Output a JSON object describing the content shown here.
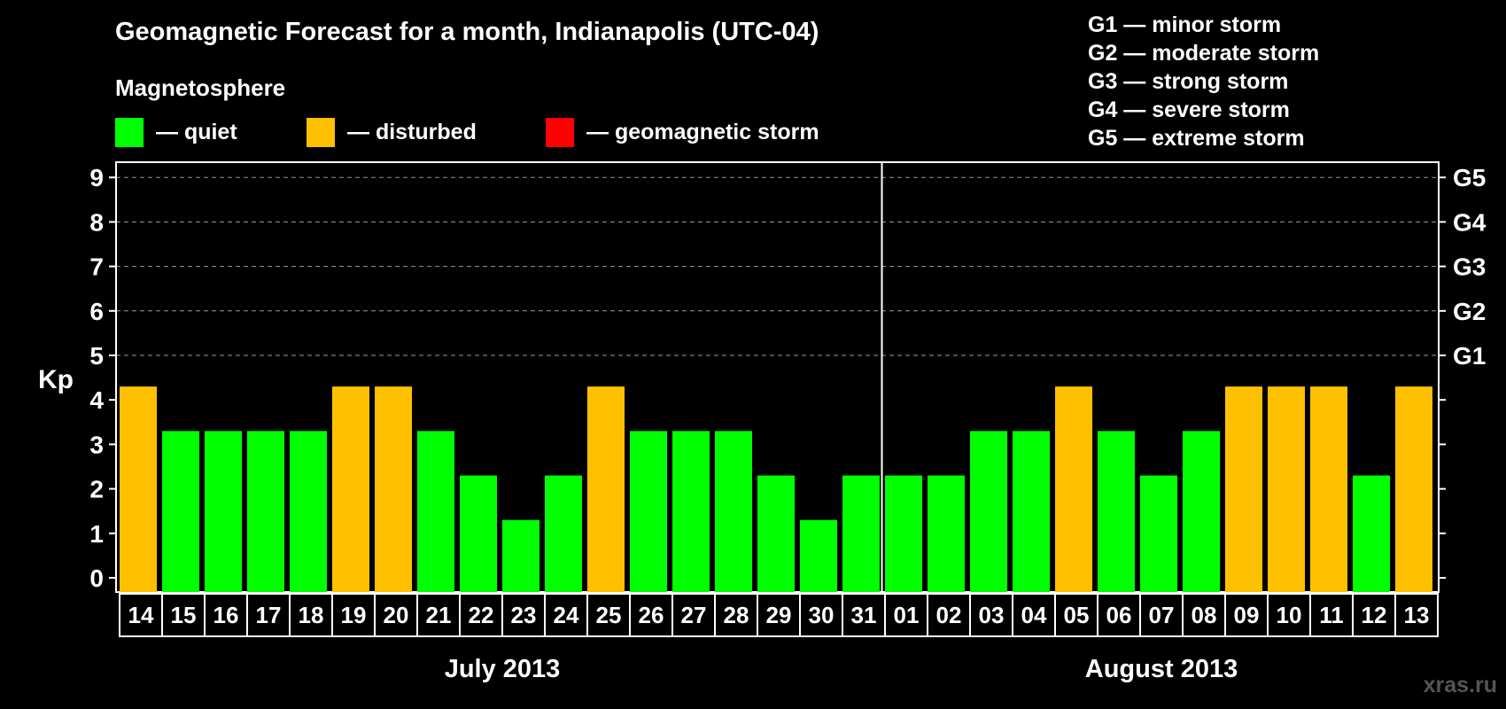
{
  "header": {
    "title": "Geomagnetic Forecast for a month, Indianapolis (UTC-04)",
    "subtitle": "Magnetosphere"
  },
  "legend": [
    {
      "label": "— quiet",
      "color": "#00ff00"
    },
    {
      "label": "— disturbed",
      "color": "#ffc000"
    },
    {
      "label": "— geomagnetic storm",
      "color": "#ff0000"
    }
  ],
  "g_legend": [
    "G1 — minor storm",
    "G2 — moderate storm",
    "G3 — strong storm",
    "G4 — severe storm",
    "G5 — extreme storm"
  ],
  "watermark": "xras.ru",
  "chart_data": {
    "type": "bar",
    "ylabel": "Kp",
    "ylim": [
      0,
      9
    ],
    "yticks": [
      "0",
      "1",
      "2",
      "3",
      "4",
      "5",
      "6",
      "7",
      "8",
      "9"
    ],
    "right_labels": [
      {
        "value": 5,
        "label": "G1"
      },
      {
        "value": 6,
        "label": "G2"
      },
      {
        "value": 7,
        "label": "G3"
      },
      {
        "value": 8,
        "label": "G4"
      },
      {
        "value": 9,
        "label": "G5"
      }
    ],
    "grid": "dashed horizontal",
    "months": [
      {
        "label": "July 2013",
        "count": 18
      },
      {
        "label": "August 2013",
        "count": 13
      }
    ],
    "categories": [
      "14",
      "15",
      "16",
      "17",
      "18",
      "19",
      "20",
      "21",
      "22",
      "23",
      "24",
      "25",
      "26",
      "27",
      "28",
      "29",
      "30",
      "31",
      "01",
      "02",
      "03",
      "04",
      "05",
      "06",
      "07",
      "08",
      "09",
      "10",
      "11",
      "12",
      "13"
    ],
    "values": [
      4,
      3,
      3,
      3,
      3,
      4,
      4,
      3,
      2,
      1,
      2,
      4,
      3,
      3,
      3,
      2,
      1,
      2,
      2,
      2,
      3,
      3,
      4,
      3,
      2,
      3,
      4,
      4,
      4,
      2,
      4
    ],
    "colors": {
      "quiet": "#00ff00",
      "disturbed": "#ffc000",
      "storm": "#ff0000"
    }
  }
}
